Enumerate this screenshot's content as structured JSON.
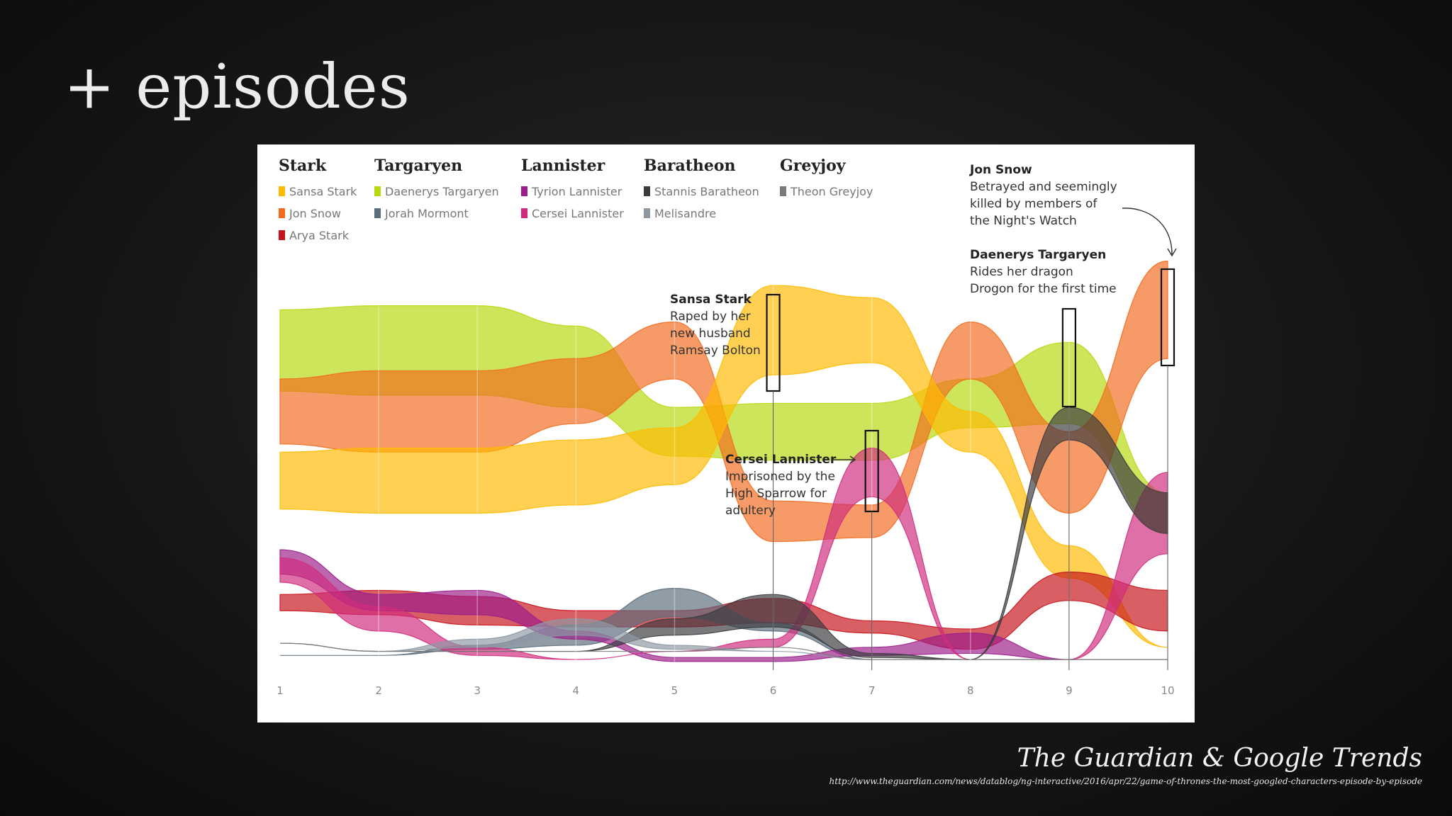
{
  "slide": {
    "title": "+ episodes",
    "credit": "The Guardian & Google Trends",
    "source_url": "http://www.theguardian.com/news/datablog/ng-interactive/2016/apr/22/game-of-thrones-the-most-googled-characters-episode-by-episode"
  },
  "chart_data": {
    "type": "area",
    "title": "",
    "xlabel": "",
    "ylabel": "",
    "categories": [
      "1",
      "2",
      "3",
      "4",
      "5",
      "6",
      "7",
      "8",
      "9",
      "10"
    ],
    "legend_position": "top",
    "houses": [
      {
        "name": "Stark",
        "members": [
          "Sansa Stark",
          "Jon Snow",
          "Arya Stark"
        ]
      },
      {
        "name": "Targaryen",
        "members": [
          "Daenerys Targaryen",
          "Jorah Mormont"
        ]
      },
      {
        "name": "Lannister",
        "members": [
          "Tyrion Lannister",
          "Cersei Lannister"
        ]
      },
      {
        "name": "Baratheon",
        "members": [
          "Stannis Baratheon",
          "Melisandre"
        ]
      },
      {
        "name": "Greyjoy",
        "members": [
          "Theon Greyjoy"
        ]
      }
    ],
    "series": [
      {
        "name": "Daenerys Targaryen",
        "color": "#b5d80e",
        "center": [
          0.2,
          0.2,
          0.2,
          0.24,
          0.4,
          0.4,
          0.4,
          0.33,
          0.28,
          0.6
        ],
        "width": [
          0.2,
          0.22,
          0.22,
          0.2,
          0.12,
          0.14,
          0.14,
          0.12,
          0.2,
          0.1
        ]
      },
      {
        "name": "Jon Snow",
        "color": "#f26b1f",
        "center": [
          0.35,
          0.35,
          0.35,
          0.3,
          0.2,
          0.62,
          0.62,
          0.2,
          0.5,
          0.1
        ],
        "width": [
          0.16,
          0.2,
          0.2,
          0.16,
          0.14,
          0.1,
          0.08,
          0.14,
          0.2,
          0.24
        ]
      },
      {
        "name": "Sansa Stark",
        "color": "#ffba00",
        "center": [
          0.52,
          0.52,
          0.52,
          0.5,
          0.46,
          0.15,
          0.15,
          0.4,
          0.72,
          0.93
        ],
        "width": [
          0.14,
          0.16,
          0.16,
          0.16,
          0.14,
          0.22,
          0.16,
          0.1,
          0.08,
          0.0
        ]
      },
      {
        "name": "Arya Stark",
        "color": "#c6131b",
        "center": [
          0.82,
          0.82,
          0.84,
          0.86,
          0.86,
          0.84,
          0.88,
          0.91,
          0.78,
          0.84
        ],
        "width": [
          0.04,
          0.06,
          0.07,
          0.04,
          0.04,
          0.06,
          0.03,
          0.05,
          0.07,
          0.1
        ]
      },
      {
        "name": "Jorah Mormont",
        "color": "#5b6e7d",
        "center": [
          0.95,
          0.95,
          0.93,
          0.9,
          0.82,
          0.88,
          0.96,
          0.96,
          0.96,
          0.96
        ],
        "width": [
          0.0,
          0.0,
          0.01,
          0.05,
          0.07,
          0.02,
          0.0,
          0.0,
          0.0,
          0.0
        ]
      },
      {
        "name": "Tyrion Lannister",
        "color": "#9c1e8a",
        "center": [
          0.72,
          0.82,
          0.82,
          0.9,
          0.96,
          0.96,
          0.94,
          0.92,
          0.96,
          0.96
        ],
        "width": [
          0.06,
          0.04,
          0.06,
          0.02,
          0.01,
          0.01,
          0.02,
          0.05,
          0.0,
          0.0
        ]
      },
      {
        "name": "Cersei Lannister",
        "color": "#d02c7d",
        "center": [
          0.74,
          0.86,
          0.94,
          0.96,
          0.94,
          0.92,
          0.5,
          0.96,
          0.96,
          0.6
        ],
        "width": [
          0.06,
          0.06,
          0.02,
          0.0,
          0.0,
          0.02,
          0.12,
          0.0,
          0.0,
          0.2
        ]
      },
      {
        "name": "Stannis Baratheon",
        "color": "#3b3b3f",
        "center": [
          0.92,
          0.94,
          0.94,
          0.94,
          0.88,
          0.84,
          0.95,
          0.96,
          0.38,
          0.6
        ],
        "width": [
          0.0,
          0.0,
          0.0,
          0.0,
          0.04,
          0.08,
          0.01,
          0.0,
          0.08,
          0.1
        ]
      },
      {
        "name": "Melisandre",
        "color": "#8e98a3",
        "center": [
          0.92,
          0.94,
          0.92,
          0.88,
          0.93,
          0.94,
          0.96,
          0.96,
          0.96,
          0.96
        ],
        "width": [
          0.0,
          0.0,
          0.02,
          0.04,
          0.01,
          0.0,
          0.0,
          0.0,
          0.0,
          0.0
        ]
      },
      {
        "name": "Theon Greyjoy",
        "color": "#7a7a7a",
        "center": [
          0.92,
          0.94,
          0.94,
          0.94,
          0.94,
          0.93,
          0.96,
          0.96,
          0.96,
          0.96
        ],
        "width": [
          0.0,
          0.0,
          0.0,
          0.0,
          0.0,
          0.0,
          0.0,
          0.0,
          0.0,
          0.0
        ]
      }
    ],
    "annotations": [
      {
        "episode": 6,
        "title": "Sansa Stark",
        "lines": [
          "Raped by her",
          "new husband",
          "Ramsay Bolton"
        ]
      },
      {
        "episode": 7,
        "title": "Cersei Lannister",
        "lines": [
          "Imprisoned by the",
          "High Sparrow for",
          "adultery"
        ]
      },
      {
        "episode": 9,
        "title": "Daenerys Targaryen",
        "lines": [
          "Rides her dragon",
          "Drogon for the first time"
        ]
      },
      {
        "episode": 10,
        "title": "Jon Snow",
        "lines": [
          "Betrayed and seemingly",
          "killed by members of",
          "the Night's Watch"
        ]
      }
    ]
  }
}
